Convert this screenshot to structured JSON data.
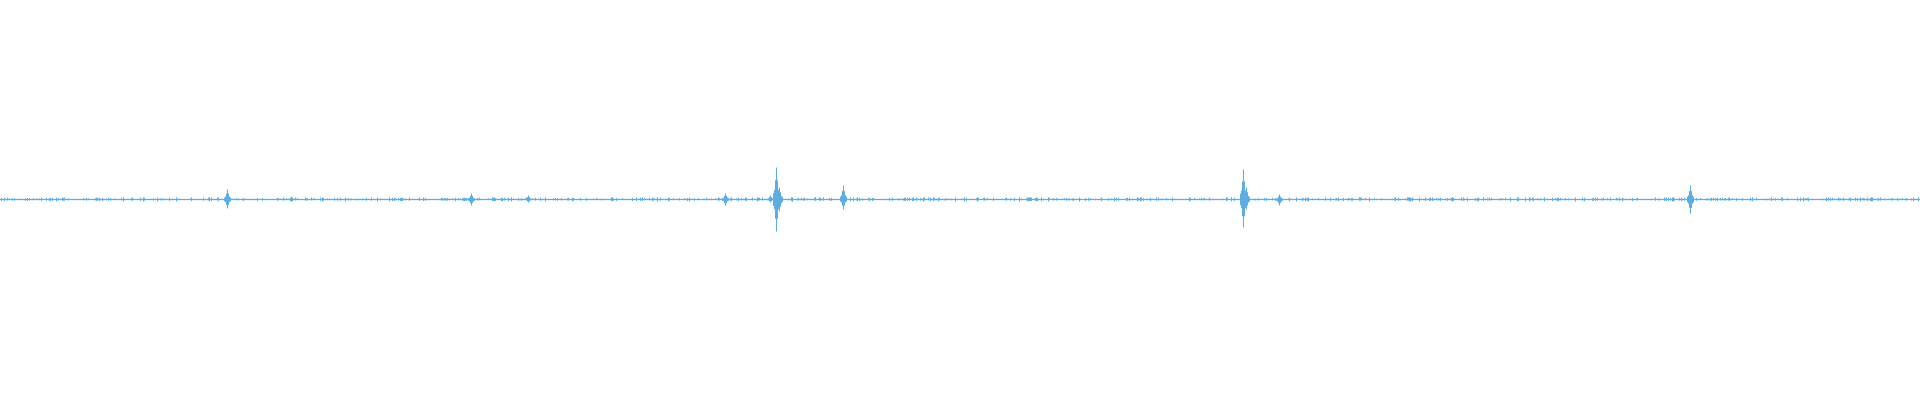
{
  "chart_data": {
    "type": "waveform",
    "title": "",
    "xlabel": "",
    "ylabel": "",
    "ylim": [
      -1,
      1
    ],
    "grid": false,
    "legend": "none",
    "color": "#5dade2",
    "background": "#ffffff",
    "sample_count": 1920,
    "baseline_noise_amplitude": 0.008,
    "peaks": [
      {
        "sample": 227,
        "max": 0.05,
        "min": -0.045
      },
      {
        "sample": 291,
        "max": 0.015,
        "min": -0.012
      },
      {
        "sample": 471,
        "max": 0.03,
        "min": -0.03
      },
      {
        "sample": 494,
        "max": 0.01,
        "min": -0.01
      },
      {
        "sample": 528,
        "max": 0.02,
        "min": -0.015
      },
      {
        "sample": 725,
        "max": 0.03,
        "min": -0.03
      },
      {
        "sample": 770,
        "max": 0.02,
        "min": -0.015
      },
      {
        "sample": 776,
        "max": 0.16,
        "min": -0.16
      },
      {
        "sample": 779,
        "max": 0.06,
        "min": -0.06
      },
      {
        "sample": 843,
        "max": 0.07,
        "min": -0.05
      },
      {
        "sample": 1243,
        "max": 0.15,
        "min": -0.14
      },
      {
        "sample": 1246,
        "max": 0.06,
        "min": -0.05
      },
      {
        "sample": 1279,
        "max": 0.025,
        "min": -0.03
      },
      {
        "sample": 1452,
        "max": 0.012,
        "min": -0.01
      },
      {
        "sample": 1690,
        "max": 0.07,
        "min": -0.07
      }
    ]
  }
}
